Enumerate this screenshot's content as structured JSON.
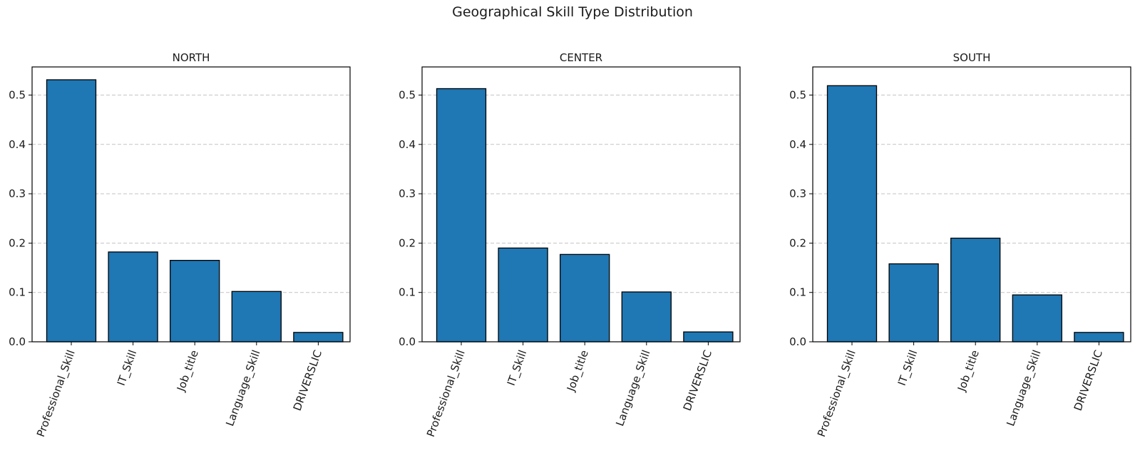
{
  "figure": {
    "suptitle": "Geographical Skill Type Distribution"
  },
  "colors": {
    "bar_fill": "#1f77b4",
    "bar_edge": "#000000",
    "grid": "#c4c4c4",
    "axis": "#000000"
  },
  "chart_data": [
    {
      "type": "bar",
      "title": "NORTH",
      "categories": [
        "Professional_Skill",
        "IT_Skill",
        "Job_title",
        "Language_Skill",
        "DRIVERSLIC"
      ],
      "values": [
        0.531,
        0.182,
        0.165,
        0.102,
        0.019
      ],
      "yticks": [
        "0.0",
        "0.1",
        "0.2",
        "0.3",
        "0.4",
        "0.5"
      ],
      "ylim": [
        0,
        0.557
      ],
      "grid": "y-dashed",
      "xlabel": "",
      "ylabel": ""
    },
    {
      "type": "bar",
      "title": "CENTER",
      "categories": [
        "Professional_Skill",
        "IT_Skill",
        "Job_title",
        "Language_Skill",
        "DRIVERSLIC"
      ],
      "values": [
        0.513,
        0.19,
        0.177,
        0.101,
        0.02
      ],
      "yticks": [
        "0.0",
        "0.1",
        "0.2",
        "0.3",
        "0.4",
        "0.5"
      ],
      "ylim": [
        0,
        0.557
      ],
      "grid": "y-dashed",
      "xlabel": "",
      "ylabel": ""
    },
    {
      "type": "bar",
      "title": "SOUTH",
      "categories": [
        "Professional_Skill",
        "IT_Skill",
        "Job_title",
        "Language_Skill",
        "DRIVERSLIC"
      ],
      "values": [
        0.519,
        0.158,
        0.21,
        0.095,
        0.019
      ],
      "yticks": [
        "0.0",
        "0.1",
        "0.2",
        "0.3",
        "0.4",
        "0.5"
      ],
      "ylim": [
        0,
        0.557
      ],
      "grid": "y-dashed",
      "xlabel": "",
      "ylabel": ""
    }
  ]
}
